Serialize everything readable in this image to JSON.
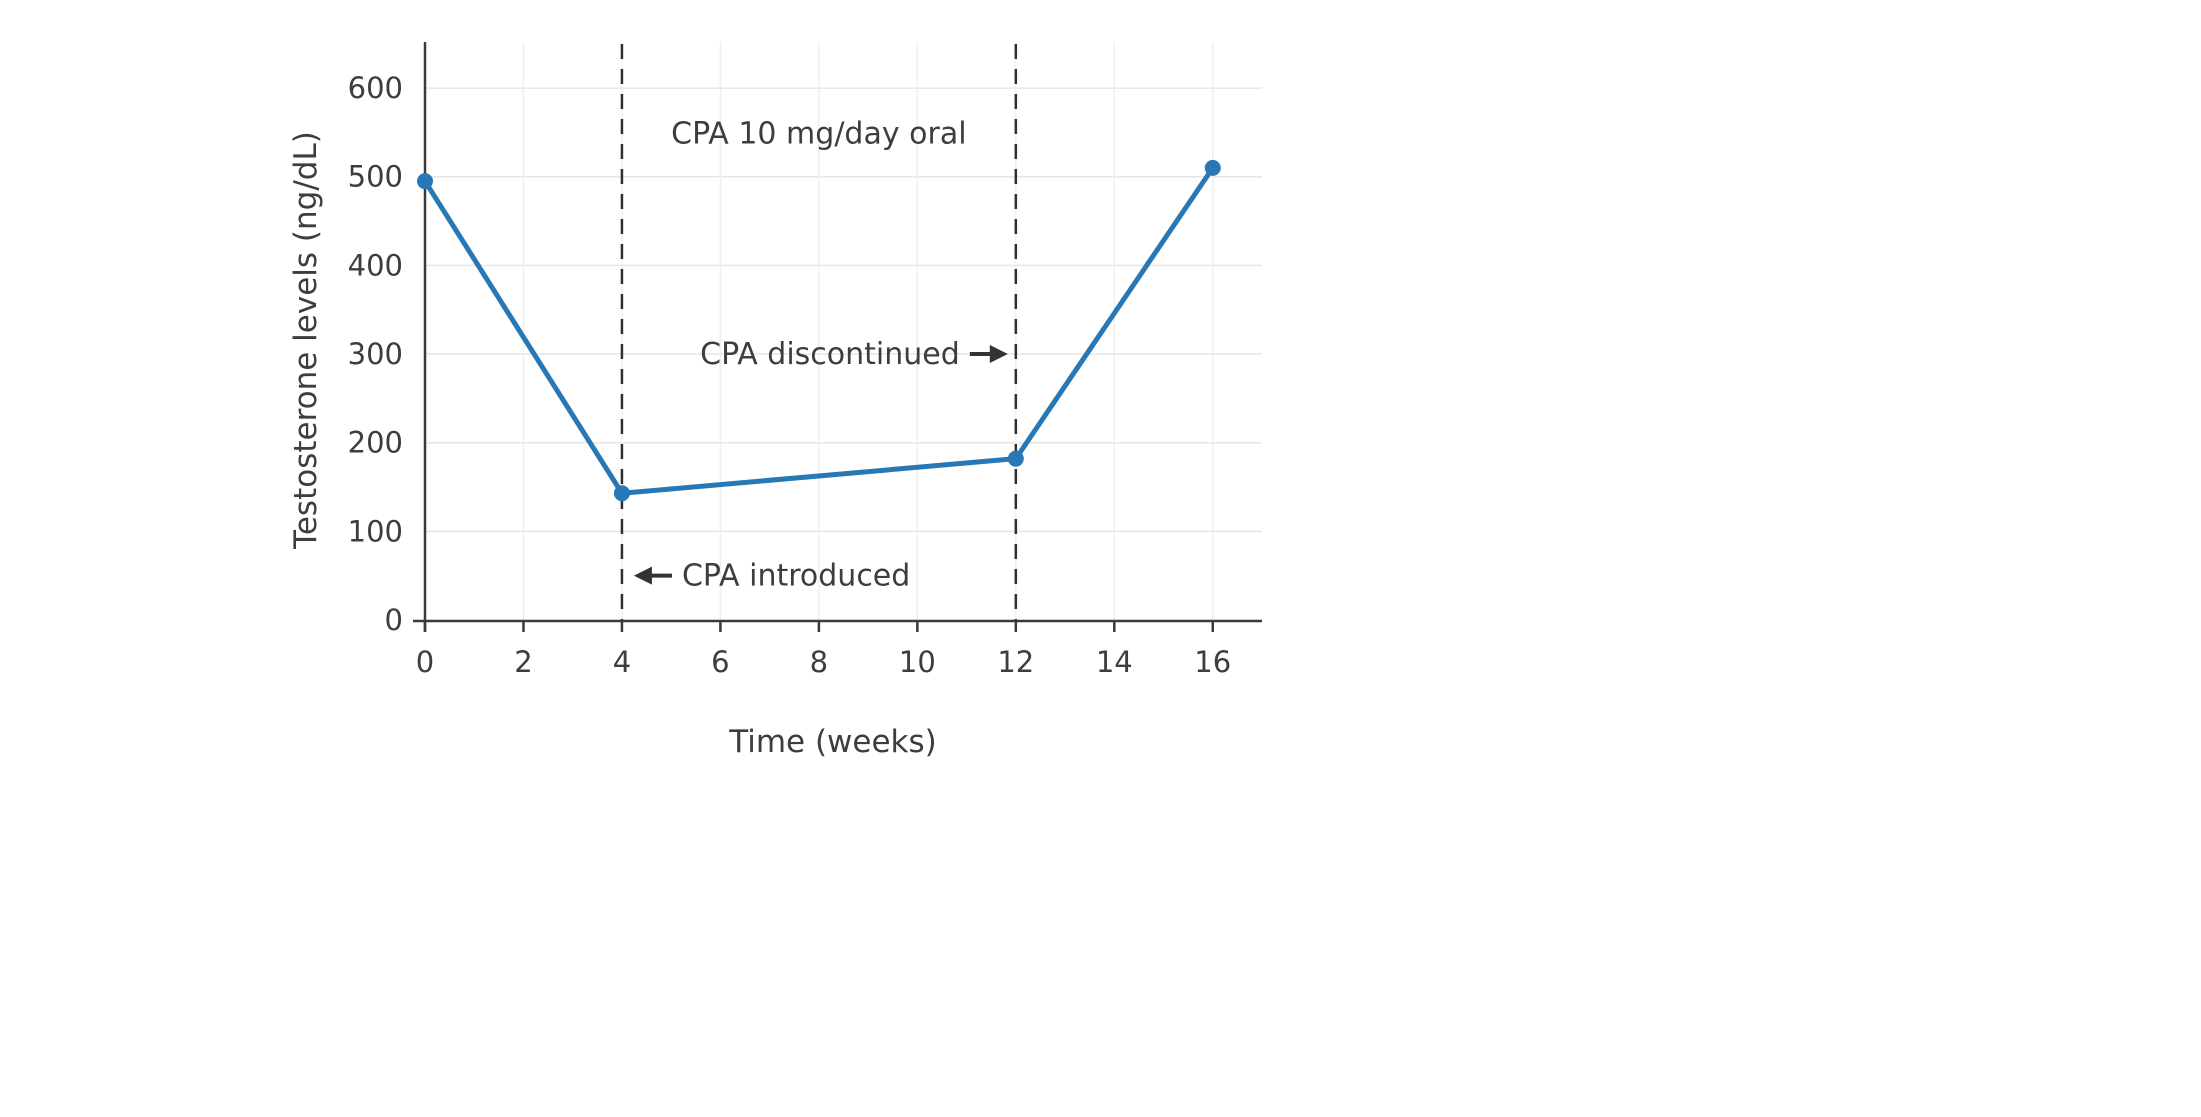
{
  "chart_data": {
    "type": "line",
    "title": "",
    "xlabel": "Time (weeks)",
    "ylabel": "Testosterone levels (ng/dL)",
    "x": [
      0,
      4,
      12,
      16
    ],
    "values": [
      495,
      143,
      182,
      510
    ],
    "series_name": "Testosterone",
    "xlim": [
      0,
      17
    ],
    "ylim": [
      0,
      650
    ],
    "xticks": [
      0,
      2,
      4,
      6,
      8,
      10,
      12,
      14,
      16
    ],
    "yticks": [
      0,
      100,
      200,
      300,
      400,
      500,
      600
    ],
    "grid": true,
    "legend": "none",
    "line_color": "#2878b5",
    "marker_color": "#2878b5",
    "vlines": [
      {
        "x": 4,
        "style": "dashed",
        "color": "#2f2f2f"
      },
      {
        "x": 12,
        "style": "dashed",
        "color": "#2f2f2f"
      }
    ],
    "annotations": [
      {
        "id": "regimen-label",
        "text": "CPA 10 mg/day oral",
        "x": 8,
        "y": 549,
        "arrow": "none"
      },
      {
        "id": "cpa-introduced",
        "text": "CPA introduced",
        "x": 4,
        "y": 50,
        "arrow": "left"
      },
      {
        "id": "cpa-discontinued",
        "text": "CPA discontinued",
        "x": 12,
        "y": 300,
        "arrow": "right"
      }
    ]
  },
  "colors": {
    "background": "#ffffff",
    "grid_horizontal": "#e6e6e6",
    "grid_vertical": "#efefef",
    "spine": "#3a3a3a",
    "text": "#3d3d3d",
    "dashed_line": "#2f2f2f",
    "arrow": "#333333"
  }
}
